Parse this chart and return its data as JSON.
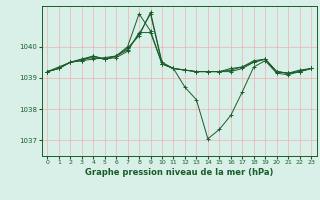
{
  "title": "Graphe pression niveau de la mer (hPa)",
  "background_color": "#d8f0e8",
  "grid_color": "#f0b0b0",
  "line_color": "#1a5c2a",
  "xlim": [
    -0.5,
    23.5
  ],
  "ylim": [
    1036.5,
    1041.3
  ],
  "yticks": [
    1037,
    1038,
    1039,
    1040
  ],
  "xticks": [
    0,
    1,
    2,
    3,
    4,
    5,
    6,
    7,
    8,
    9,
    10,
    11,
    12,
    13,
    14,
    15,
    16,
    17,
    18,
    19,
    20,
    21,
    22,
    23
  ],
  "series": [
    [
      1039.2,
      1039.3,
      1039.5,
      1039.55,
      1039.6,
      1039.65,
      1039.7,
      1040.0,
      1041.05,
      1040.5,
      1039.45,
      1039.3,
      1038.7,
      1038.3,
      1037.05,
      1037.35,
      1037.8,
      1038.55,
      1039.35,
      1039.55,
      1039.15,
      1039.1,
      1039.2,
      1039.3
    ],
    [
      1039.2,
      1039.35,
      1039.5,
      1039.6,
      1039.65,
      1039.6,
      1039.65,
      1039.85,
      1040.45,
      1040.45,
      1039.45,
      1039.3,
      1039.25,
      1039.2,
      1039.2,
      1039.2,
      1039.2,
      1039.3,
      1039.5,
      1039.6,
      1039.2,
      1039.15,
      1039.2,
      1039.3
    ],
    [
      1039.2,
      1039.3,
      1039.5,
      1039.6,
      1039.7,
      1039.6,
      1039.7,
      1039.95,
      1040.35,
      1041.1,
      1039.5,
      1039.3,
      1039.25,
      1039.2,
      1039.2,
      1039.2,
      1039.3,
      1039.35,
      1039.55,
      1039.6,
      1039.2,
      1039.15,
      1039.25,
      1039.3
    ],
    [
      1039.2,
      1039.3,
      1039.5,
      1039.55,
      1039.7,
      1039.6,
      1039.7,
      1039.9,
      1040.4,
      1041.05,
      1039.45,
      1039.3,
      1039.25,
      1039.2,
      1039.2,
      1039.2,
      1039.25,
      1039.35,
      1039.5,
      1039.6,
      1039.2,
      1039.15,
      1039.2,
      1039.3
    ]
  ],
  "figsize": [
    3.2,
    2.0
  ],
  "dpi": 100
}
